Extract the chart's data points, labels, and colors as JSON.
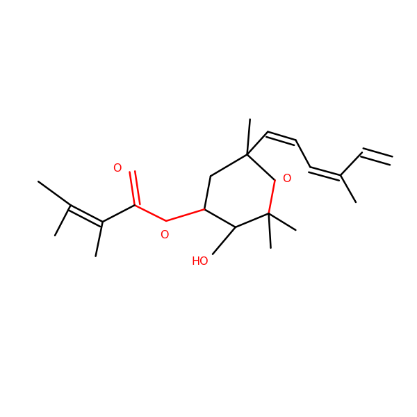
{
  "bg_color": "#ffffff",
  "figsize": [
    6.0,
    6.0
  ],
  "dpi": 100,
  "lw": 1.8,
  "dbl_off": 0.013,
  "xlim": [
    0.0,
    1.0
  ],
  "ylim": [
    0.0,
    1.0
  ]
}
